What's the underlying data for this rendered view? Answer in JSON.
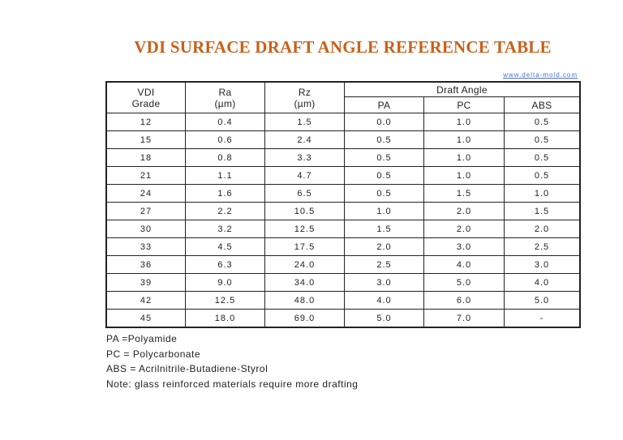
{
  "title": "VDI SURFACE DRAFT ANGLE REFERENCE TABLE",
  "url": "www.delta-mold.com",
  "headers": {
    "vdi_line1": "VDI",
    "vdi_line2": "Grade",
    "ra_line1": "Ra",
    "ra_line2": "(µm)",
    "rz_line1": "Rz",
    "rz_line2": "(µm)",
    "draft": "Draft Angle",
    "pa": "PA",
    "pc": "PC",
    "abs": "ABS"
  },
  "rows": [
    [
      "12",
      "0.4",
      "1.5",
      "0.0",
      "1.0",
      "0.5"
    ],
    [
      "15",
      "0.6",
      "2.4",
      "0.5",
      "1.0",
      "0.5"
    ],
    [
      "18",
      "0.8",
      "3.3",
      "0.5",
      "1.0",
      "0.5"
    ],
    [
      "21",
      "1.1",
      "4.7",
      "0.5",
      "1.0",
      "0.5"
    ],
    [
      "24",
      "1.6",
      "6.5",
      "0.5",
      "1.5",
      "1.0"
    ],
    [
      "27",
      "2.2",
      "10.5",
      "1.0",
      "2.0",
      "1.5"
    ],
    [
      "30",
      "3.2",
      "12.5",
      "1.5",
      "2.0",
      "2.0"
    ],
    [
      "33",
      "4.5",
      "17.5",
      "2.0",
      "3.0",
      "2.5"
    ],
    [
      "36",
      "6.3",
      "24.0",
      "2.5",
      "4.0",
      "3.0"
    ],
    [
      "39",
      "9.0",
      "34.0",
      "3.0",
      "5.0",
      "4.0"
    ],
    [
      "42",
      "12.5",
      "48.0",
      "4.0",
      "6.0",
      "5.0"
    ],
    [
      "45",
      "18.0",
      "69.0",
      "5.0",
      "7.0",
      "-"
    ]
  ],
  "notes": [
    "PA =Polyamide",
    "PC = Polycarbonate",
    "ABS = Acrilnitrile-Butadiene-Styrol",
    "Note: glass reinforced materials require more drafting"
  ],
  "colors": {
    "title": "#c8611a",
    "link": "#4a6fd0"
  }
}
